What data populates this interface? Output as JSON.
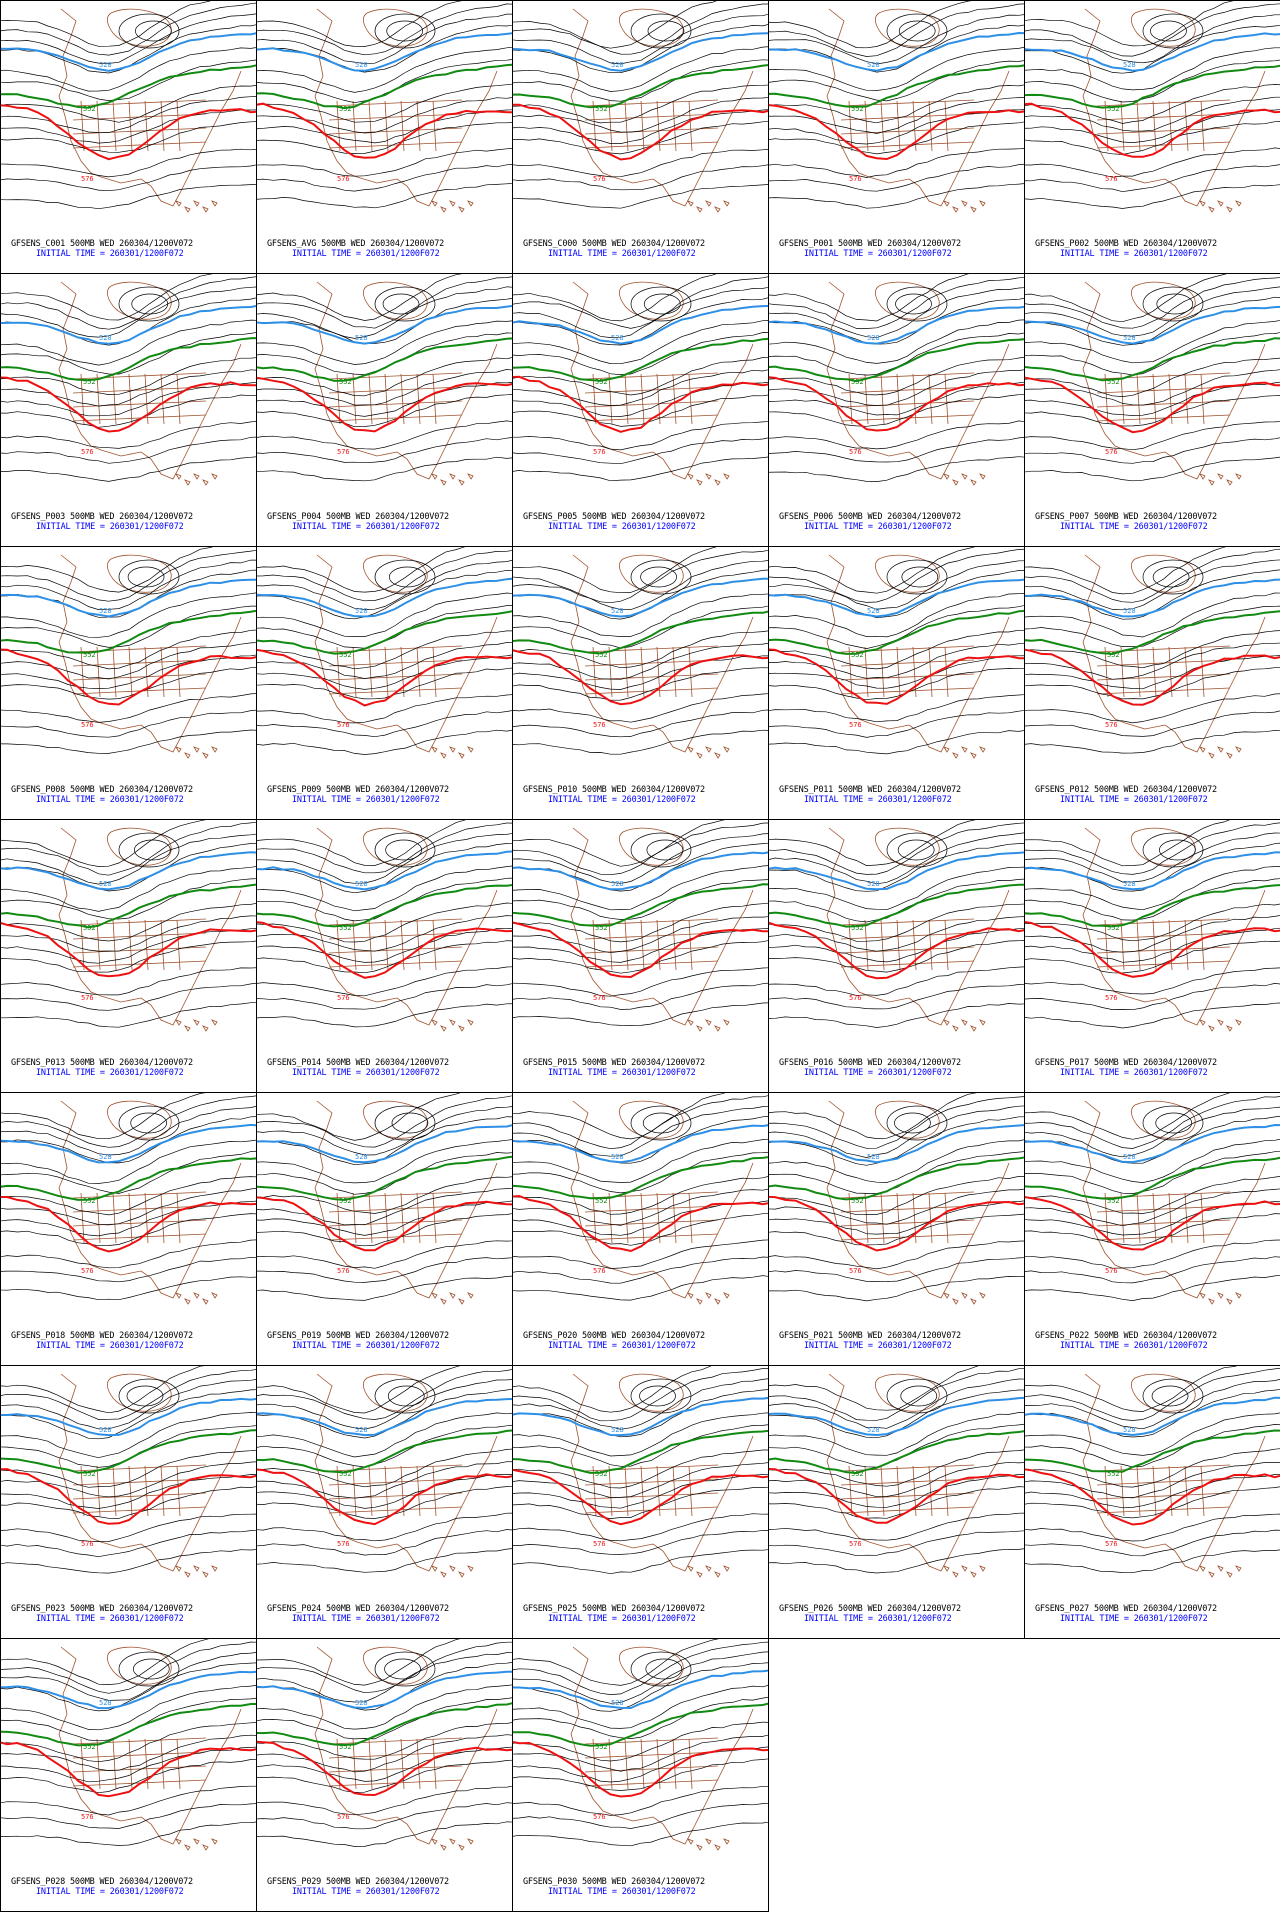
{
  "contour_levels": {
    "blue": "528",
    "green": "552",
    "red": "576"
  },
  "colors": {
    "blue": "#2e8fe6",
    "green": "#118a11",
    "red": "#ee1111",
    "black": "#000000",
    "geography": "#a0522d",
    "caption_main": "#000000",
    "caption_time": "#0000ff"
  },
  "panels": [
    {
      "caption": "GFSENS_C001 500MB WED 260304/1200V072",
      "time": "INITIAL TIME = 260301/1200F072"
    },
    {
      "caption": "GFSENS_AVG 500MB WED 260304/1200V072",
      "time": "INITIAL TIME = 260301/1200F072"
    },
    {
      "caption": "GFSENS_C000 500MB WED 260304/1200V072",
      "time": "INITIAL TIME = 260301/1200F072"
    },
    {
      "caption": "GFSENS_P001 500MB WED 260304/1200V072",
      "time": "INITIAL TIME = 260301/1200F072"
    },
    {
      "caption": "GFSENS_P002 500MB WED 260304/1200V072",
      "time": "INITIAL TIME = 260301/1200F072"
    },
    {
      "caption": "GFSENS_P003 500MB WED 260304/1200V072",
      "time": "INITIAL TIME = 260301/1200F072"
    },
    {
      "caption": "GFSENS_P004 500MB WED 260304/1200V072",
      "time": "INITIAL TIME = 260301/1200F072"
    },
    {
      "caption": "GFSENS_P005 500MB WED 260304/1200V072",
      "time": "INITIAL TIME = 260301/1200F072"
    },
    {
      "caption": "GFSENS_P006 500MB WED 260304/1200V072",
      "time": "INITIAL TIME = 260301/1200F072"
    },
    {
      "caption": "GFSENS_P007 500MB WED 260304/1200V072",
      "time": "INITIAL TIME = 260301/1200F072"
    },
    {
      "caption": "GFSENS_P008 500MB WED 260304/1200V072",
      "time": "INITIAL TIME = 260301/1200F072"
    },
    {
      "caption": "GFSENS_P009 500MB WED 260304/1200V072",
      "time": "INITIAL TIME = 260301/1200F072"
    },
    {
      "caption": "GFSENS_P010 500MB WED 260304/1200V072",
      "time": "INITIAL TIME = 260301/1200F072"
    },
    {
      "caption": "GFSENS_P011 500MB WED 260304/1200V072",
      "time": "INITIAL TIME = 260301/1200F072"
    },
    {
      "caption": "GFSENS_P012 500MB WED 260304/1200V072",
      "time": "INITIAL TIME = 260301/1200F072"
    },
    {
      "caption": "GFSENS_P013 500MB WED 260304/1200V072",
      "time": "INITIAL TIME = 260301/1200F072"
    },
    {
      "caption": "GFSENS_P014 500MB WED 260304/1200V072",
      "time": "INITIAL TIME = 260301/1200F072"
    },
    {
      "caption": "GFSENS_P015 500MB WED 260304/1200V072",
      "time": "INITIAL TIME = 260301/1200F072"
    },
    {
      "caption": "GFSENS_P016 500MB WED 260304/1200V072",
      "time": "INITIAL TIME = 260301/1200F072"
    },
    {
      "caption": "GFSENS_P017 500MB WED 260304/1200V072",
      "time": "INITIAL TIME = 260301/1200F072"
    },
    {
      "caption": "GFSENS_P018 500MB WED 260304/1200V072",
      "time": "INITIAL TIME = 260301/1200F072"
    },
    {
      "caption": "GFSENS_P019 500MB WED 260304/1200V072",
      "time": "INITIAL TIME = 260301/1200F072"
    },
    {
      "caption": "GFSENS_P020 500MB WED 260304/1200V072",
      "time": "INITIAL TIME = 260301/1200F072"
    },
    {
      "caption": "GFSENS_P021 500MB WED 260304/1200V072",
      "time": "INITIAL TIME = 260301/1200F072"
    },
    {
      "caption": "GFSENS_P022 500MB WED 260304/1200V072",
      "time": "INITIAL TIME = 260301/1200F072"
    },
    {
      "caption": "GFSENS_P023 500MB WED 260304/1200V072",
      "time": "INITIAL TIME = 260301/1200F072"
    },
    {
      "caption": "GFSENS_P024 500MB WED 260304/1200V072",
      "time": "INITIAL TIME = 260301/1200F072"
    },
    {
      "caption": "GFSENS_P025 500MB WED 260304/1200V072",
      "time": "INITIAL TIME = 260301/1200F072"
    },
    {
      "caption": "GFSENS_P026 500MB WED 260304/1200V072",
      "time": "INITIAL TIME = 260301/1200F072"
    },
    {
      "caption": "GFSENS_P027 500MB WED 260304/1200V072",
      "time": "INITIAL TIME = 260301/1200F072"
    },
    {
      "caption": "GFSENS_P028 500MB WED 260304/1200V072",
      "time": "INITIAL TIME = 260301/1200F072"
    },
    {
      "caption": "GFSENS_P029 500MB WED 260304/1200V072",
      "time": "INITIAL TIME = 260301/1200F072"
    },
    {
      "caption": "GFSENS_P030 500MB WED 260304/1200V072",
      "time": "INITIAL TIME = 260301/1200F072"
    }
  ]
}
